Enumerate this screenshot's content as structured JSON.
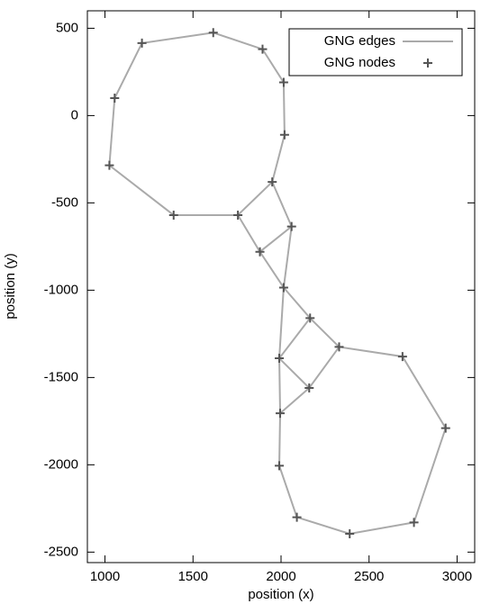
{
  "chart_data": {
    "type": "scatter",
    "xlabel": "position (x)",
    "ylabel": "position (y)",
    "xlim": [
      900,
      3100
    ],
    "ylim": [
      -2560,
      600
    ],
    "xticks": [
      1000,
      1500,
      2000,
      2500,
      3000
    ],
    "yticks": [
      -2500,
      -2000,
      -1500,
      -1000,
      -500,
      0,
      500
    ],
    "legend": "top right",
    "series": [
      {
        "name": "GNG edges",
        "type": "line",
        "color": "#aaaaaa",
        "x": [
          1755,
          1390,
          1025,
          1055,
          1210,
          1615,
          1895,
          2015,
          2020,
          1950,
          1755,
          1880,
          2060,
          1950,
          null,
          2060,
          2015,
          1880,
          null,
          2015,
          2165,
          2330,
          2690,
          2935,
          2755,
          2390,
          2090,
          1990,
          1995,
          1990,
          2015,
          null,
          2165,
          1990,
          2160,
          2330,
          null,
          2160,
          1995
        ],
        "y": [
          -570,
          -570,
          -285,
          100,
          415,
          475,
          380,
          190,
          -110,
          -380,
          -570,
          -780,
          -635,
          -380,
          null,
          -635,
          -985,
          -780,
          null,
          -985,
          -1160,
          -1325,
          -1380,
          -1790,
          -2330,
          -2395,
          -2300,
          -2005,
          -1705,
          -1390,
          -985,
          null,
          -1160,
          -1390,
          -1560,
          -1325,
          null,
          -1560,
          -1705
        ]
      },
      {
        "name": "GNG nodes",
        "type": "scatter",
        "color": "#555555",
        "x": [
          1615,
          1210,
          1895,
          1055,
          2015,
          2020,
          1025,
          1950,
          1390,
          1755,
          2060,
          1880,
          2015,
          2165,
          2330,
          2690,
          1990,
          2160,
          1995,
          2935,
          1990,
          2090,
          2755,
          2390
        ],
        "y": [
          475,
          415,
          380,
          100,
          190,
          -110,
          -285,
          -380,
          -570,
          -570,
          -635,
          -780,
          -985,
          -1160,
          -1325,
          -1380,
          -1390,
          -1560,
          -1705,
          -1790,
          -2005,
          -2300,
          -2330,
          -2395
        ]
      }
    ]
  }
}
